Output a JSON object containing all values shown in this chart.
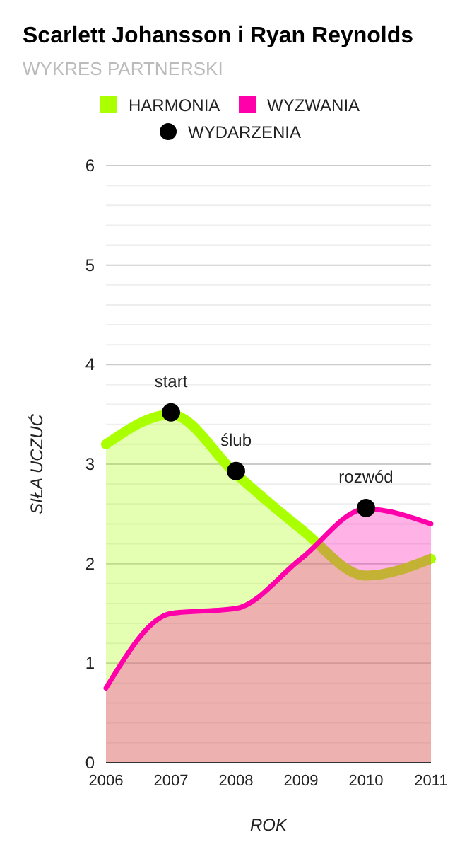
{
  "chart_data": {
    "type": "area",
    "title": "Scarlett Johansson i Ryan Reynolds",
    "subtitle": "WYKRES PARTNERSKI",
    "xlabel": "ROK",
    "ylabel": "SIŁA UCZUĆ",
    "x": [
      2006,
      2007,
      2008,
      2009,
      2010,
      2011
    ],
    "series": [
      {
        "name": "HARMONIA",
        "color": "#aaff00",
        "values": [
          3.2,
          3.5,
          2.9,
          2.35,
          1.88,
          2.05
        ]
      },
      {
        "name": "WYZWANIA",
        "color": "#ff00aa",
        "values": [
          0.75,
          1.5,
          1.55,
          2.05,
          2.55,
          2.4
        ]
      },
      {
        "name": "WYDARZENIA",
        "type": "scatter",
        "marker": "circle",
        "color": "#000000",
        "x": [
          2007,
          2008,
          2010
        ],
        "values": [
          3.52,
          2.93,
          2.56
        ]
      }
    ],
    "annotations": [
      {
        "text": "start",
        "x": 2007,
        "y": 3.52
      },
      {
        "text": "ślub",
        "x": 2008,
        "y": 2.93
      },
      {
        "text": "rozwód",
        "x": 2010,
        "y": 2.56
      }
    ],
    "xlim": [
      2006,
      2011
    ],
    "xticks": [
      2006,
      2007,
      2008,
      2009,
      2010,
      2011
    ],
    "ylim": [
      0,
      6
    ],
    "yticks": [
      0,
      {
        "value": 0.2,
        "label": null
      },
      {
        "value": 0.4,
        "label": null
      },
      {
        "value": 0.6,
        "label": null
      },
      {
        "value": 0.8,
        "label": null
      },
      1,
      {
        "value": 1.2,
        "label": null
      },
      {
        "value": 1.4,
        "label": null
      },
      {
        "value": 1.6,
        "label": null
      },
      {
        "value": 1.8,
        "label": null
      },
      2,
      {
        "value": 2.2,
        "label": null
      },
      {
        "value": 2.4,
        "label": null
      },
      {
        "value": 2.6,
        "label": null
      },
      {
        "value": 2.8,
        "label": null
      },
      3,
      {
        "value": 3.2,
        "label": null
      },
      {
        "value": 3.4,
        "label": null
      },
      {
        "value": 3.6,
        "label": null
      },
      {
        "value": 3.8,
        "label": null
      },
      4,
      {
        "value": 4.2,
        "label": null
      },
      {
        "value": 4.4,
        "label": null
      },
      {
        "value": 4.6,
        "label": null
      },
      {
        "value": 4.8,
        "label": null
      },
      5,
      {
        "value": 5.2,
        "label": null
      },
      {
        "value": 5.4,
        "label": null
      },
      {
        "value": 5.6,
        "label": null
      },
      {
        "value": 5.8,
        "label": null
      },
      6
    ],
    "grid": "y",
    "legend": "top",
    "marker": "none"
  }
}
